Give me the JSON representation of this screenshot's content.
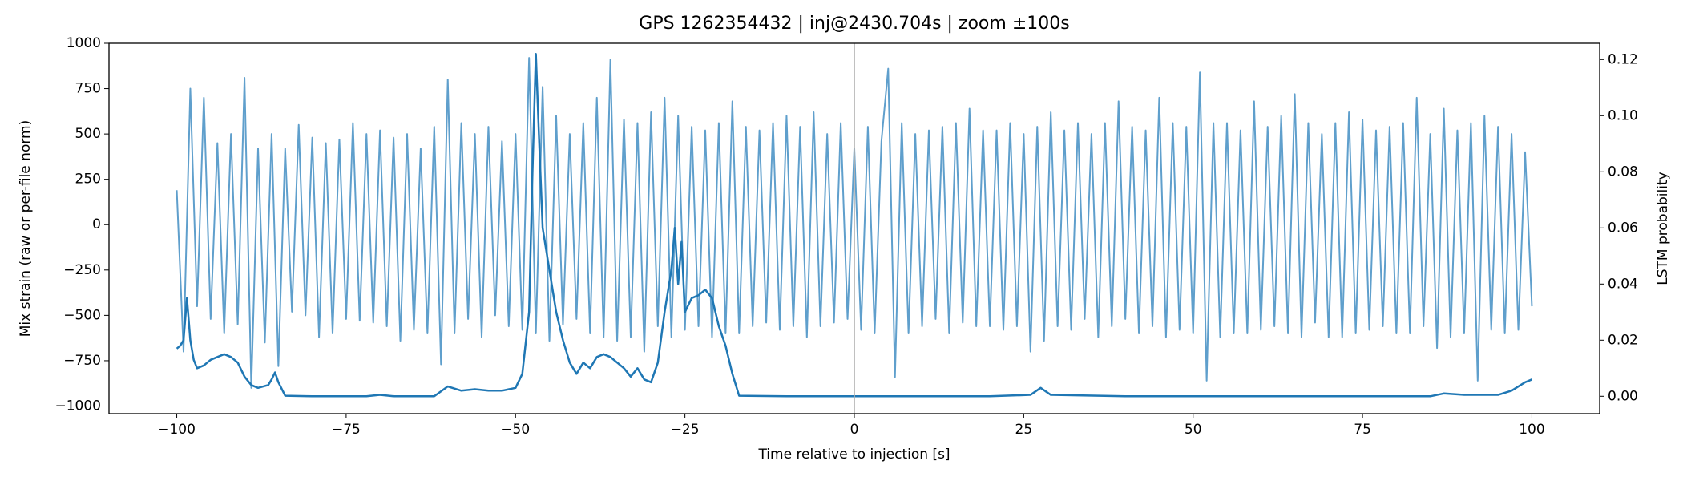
{
  "chart_data": {
    "type": "line",
    "title": "GPS 1262354432 | inj@2430.704s | zoom ±100s",
    "xlabel": "Time relative to injection [s]",
    "ylabel": "Mix strain (raw or per-file norm)",
    "y2label": "LSTM probability",
    "xlim": [
      -110,
      110
    ],
    "ylim": [
      -1042,
      1000
    ],
    "y2lim": [
      -0.0062,
      0.1258
    ],
    "xticks": [
      {
        "value": -100,
        "label": "−100"
      },
      {
        "value": -75,
        "label": "−75"
      },
      {
        "value": -50,
        "label": "−50"
      },
      {
        "value": -25,
        "label": "−25"
      },
      0,
      25,
      50,
      75,
      100
    ],
    "yticks": [
      {
        "value": -1000,
        "label": "−1000"
      },
      {
        "value": -750,
        "label": "−750"
      },
      {
        "value": -500,
        "label": "−500"
      },
      {
        "value": -250,
        "label": "−250"
      },
      0,
      250,
      500,
      750,
      1000
    ],
    "y2ticks": [
      {
        "value": 0,
        "label": "0.00"
      },
      {
        "value": 0.02,
        "label": "0.02"
      },
      {
        "value": 0.04,
        "label": "0.04"
      },
      {
        "value": 0.06,
        "label": "0.06"
      },
      {
        "value": 0.08,
        "label": "0.08"
      },
      {
        "value": 0.1,
        "label": "0.10"
      },
      {
        "value": 0.12,
        "label": "0.12"
      }
    ],
    "vline": 0,
    "vline_color": "#b0b0b0",
    "series": [
      {
        "color": "#5f9fcc",
        "axis": "y",
        "x": [
          -100,
          -99,
          -98,
          -97,
          -96,
          -95,
          -94,
          -93,
          -92,
          -91,
          -90,
          -89,
          -88,
          -87,
          -86,
          -85,
          -84,
          -83,
          -82,
          -81,
          -80,
          -79,
          -78,
          -77,
          -76,
          -75,
          -74,
          -73,
          -72,
          -71,
          -70,
          -69,
          -68,
          -67,
          -66,
          -65,
          -64,
          -63,
          -62,
          -61,
          -60,
          -59,
          -58,
          -57,
          -56,
          -55,
          -54,
          -53,
          -52,
          -51,
          -50,
          -49,
          -48,
          -47,
          -46,
          -45,
          -44,
          -43,
          -42,
          -41,
          -40,
          -39,
          -38,
          -37,
          -36,
          -35,
          -34,
          -33,
          -32,
          -31,
          -30,
          -29,
          -28,
          -27,
          -26,
          -25,
          -24,
          -23,
          -22,
          -21,
          -20,
          -19,
          -18,
          -17,
          -16,
          -15,
          -14,
          -13,
          -12,
          -11,
          -10,
          -9,
          -8,
          -7,
          -6,
          -5,
          -4,
          -3,
          -2,
          -1,
          0,
          1,
          2,
          3,
          4,
          5,
          6,
          7,
          8,
          9,
          10,
          11,
          12,
          13,
          14,
          15,
          16,
          17,
          18,
          19,
          20,
          21,
          22,
          23,
          24,
          25,
          26,
          27,
          28,
          29,
          30,
          31,
          32,
          33,
          34,
          35,
          36,
          37,
          38,
          39,
          40,
          41,
          42,
          43,
          44,
          45,
          46,
          47,
          48,
          49,
          50,
          51,
          52,
          53,
          54,
          55,
          56,
          57,
          58,
          59,
          60,
          61,
          62,
          63,
          64,
          65,
          66,
          67,
          68,
          69,
          70,
          71,
          72,
          73,
          74,
          75,
          76,
          77,
          78,
          79,
          80,
          81,
          82,
          83,
          84,
          85,
          86,
          87,
          88,
          89,
          90,
          91,
          92,
          93,
          94,
          95,
          96,
          97,
          98,
          99,
          100
        ],
        "values": [
          190,
          -700,
          750,
          -450,
          700,
          -520,
          450,
          -600,
          500,
          -550,
          810,
          -900,
          420,
          -650,
          500,
          -780,
          420,
          -480,
          550,
          -500,
          480,
          -620,
          450,
          -600,
          470,
          -520,
          560,
          -530,
          500,
          -540,
          520,
          -560,
          480,
          -640,
          500,
          -580,
          420,
          -600,
          540,
          -770,
          800,
          -600,
          560,
          -520,
          500,
          -620,
          540,
          -500,
          460,
          -560,
          500,
          -580,
          920,
          -600,
          760,
          -640,
          600,
          -550,
          500,
          -520,
          560,
          -600,
          700,
          -620,
          910,
          -640,
          580,
          -620,
          560,
          -700,
          620,
          -560,
          700,
          -620,
          600,
          -580,
          540,
          -560,
          520,
          -620,
          560,
          -600,
          680,
          -600,
          540,
          -560,
          520,
          -540,
          560,
          -580,
          600,
          -560,
          540,
          -620,
          620,
          -560,
          500,
          -540,
          560,
          -520,
          420,
          -580,
          540,
          -600,
          460,
          860,
          -840,
          560,
          -600,
          500,
          -560,
          520,
          -520,
          540,
          -600,
          560,
          -540,
          640,
          -560,
          520,
          -560,
          520,
          -580,
          560,
          -560,
          500,
          -700,
          540,
          -640,
          620,
          -560,
          520,
          -580,
          560,
          -520,
          500,
          -620,
          560,
          -560,
          680,
          -520,
          540,
          -600,
          520,
          -560,
          700,
          -620,
          560,
          -580,
          540,
          -600,
          840,
          -860,
          560,
          -620,
          560,
          -600,
          520,
          -600,
          680,
          -580,
          540,
          -560,
          600,
          -600,
          720,
          -620,
          560,
          -540,
          500,
          -620,
          560,
          -620,
          620,
          -600,
          580,
          -580,
          520,
          -560,
          540,
          -600,
          560,
          -600,
          700,
          -560,
          500,
          -680,
          640,
          -620,
          520,
          -600,
          560,
          -860,
          600,
          -580,
          540,
          -600,
          500,
          -580,
          400,
          -450
        ]
      },
      {
        "color": "#1f77b4",
        "axis": "y2",
        "x": [
          -100,
          -99.5,
          -99,
          -98.5,
          -98,
          -97.5,
          -97,
          -96,
          -95,
          -94,
          -93,
          -92,
          -91,
          -90,
          -89,
          -88,
          -86.5,
          -86,
          -85.5,
          -85,
          -84,
          -80,
          -72,
          -70,
          -68,
          -62,
          -60,
          -58,
          -56,
          -54,
          -52,
          -50,
          -49,
          -48,
          -47.5,
          -47,
          -46.5,
          -46,
          -45,
          -44,
          -43,
          -42,
          -41,
          -40,
          -39,
          -38,
          -37,
          -36,
          -35,
          -34,
          -33,
          -32,
          -31,
          -30,
          -29,
          -28,
          -27,
          -26.5,
          -26,
          -25.5,
          -25,
          -24,
          -23,
          -22,
          -21,
          -20,
          -19,
          -18,
          -17,
          -10,
          0,
          10,
          20,
          26,
          27.5,
          29,
          40,
          60,
          80,
          85,
          87,
          90,
          95,
          97,
          99,
          100
        ],
        "values": [
          0.017,
          0.018,
          0.02,
          0.035,
          0.02,
          0.013,
          0.01,
          0.011,
          0.013,
          0.014,
          0.015,
          0.014,
          0.012,
          0.007,
          0.004,
          0.003,
          0.004,
          0.006,
          0.0085,
          0.005,
          0.0002,
          0.0,
          0.0,
          0.0005,
          0.0,
          0.0,
          0.0035,
          0.002,
          0.0025,
          0.002,
          0.002,
          0.003,
          0.008,
          0.03,
          0.08,
          0.122,
          0.09,
          0.06,
          0.045,
          0.03,
          0.02,
          0.012,
          0.008,
          0.012,
          0.01,
          0.014,
          0.015,
          0.014,
          0.012,
          0.01,
          0.007,
          0.01,
          0.006,
          0.005,
          0.012,
          0.03,
          0.045,
          0.06,
          0.04,
          0.055,
          0.03,
          0.035,
          0.036,
          0.038,
          0.035,
          0.025,
          0.018,
          0.008,
          0.0002,
          0.0,
          0.0,
          0.0,
          0.0,
          0.0005,
          0.003,
          0.0005,
          0.0,
          0.0,
          0.0,
          0.0,
          0.001,
          0.0005,
          0.0005,
          0.002,
          0.005,
          0.006
        ]
      }
    ]
  }
}
